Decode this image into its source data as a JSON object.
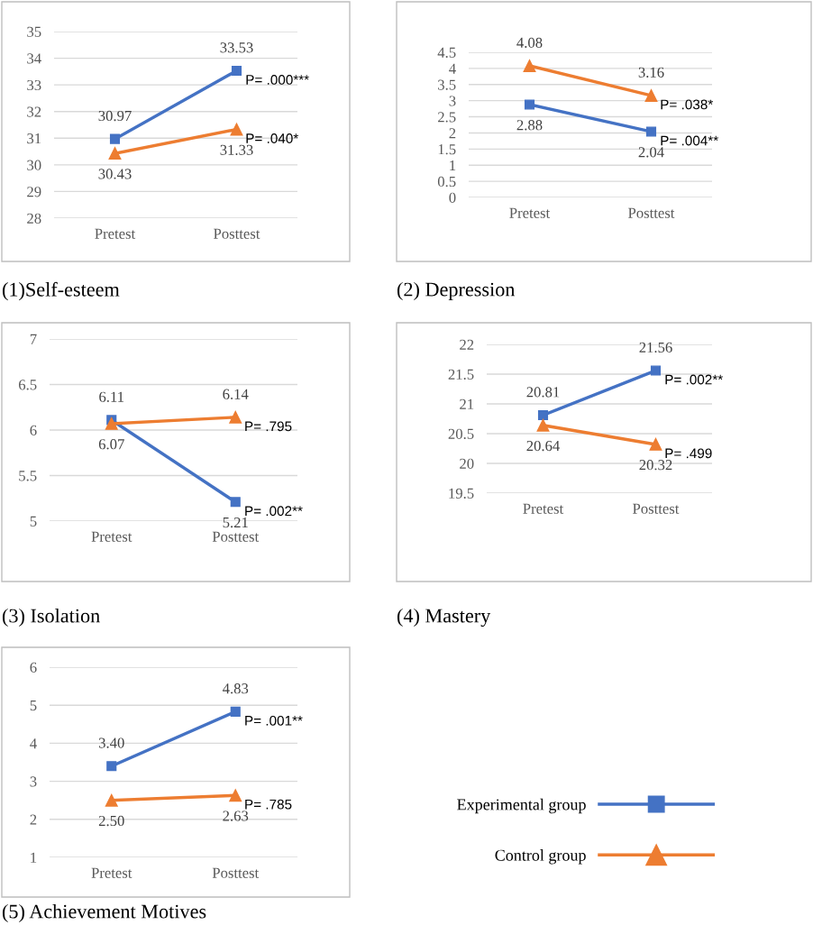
{
  "chart_data": [
    {
      "type": "line",
      "title": "(1)Self-esteem",
      "categories": [
        "Pretest",
        "Posttest"
      ],
      "ylim": [
        28,
        35
      ],
      "yticks": [
        28,
        29,
        30,
        31,
        32,
        33,
        34,
        35
      ],
      "grid": "y",
      "series": [
        {
          "color": "#4472c4",
          "marker": "square",
          "values": [
            30.97,
            33.53
          ],
          "value_labels": [
            "30.97",
            "33.53"
          ]
        },
        {
          "color": "#ed7d31",
          "marker": "triangle",
          "values": [
            30.43,
            31.33
          ],
          "value_labels": [
            "30.43",
            "31.33"
          ]
        }
      ],
      "annotations": [
        {
          "text": "P= .000***",
          "x": "Posttest",
          "y": 33.53
        },
        {
          "text": "P= .040*",
          "x": "Posttest",
          "y": 31.33
        }
      ]
    },
    {
      "type": "line",
      "title": "(2) Depression",
      "categories": [
        "Pretest",
        "Posttest"
      ],
      "ylim": [
        0,
        4.5
      ],
      "yticks": [
        0,
        0.5,
        1,
        1.5,
        2,
        2.5,
        3,
        3.5,
        4,
        4.5
      ],
      "grid": "y",
      "series": [
        {
          "color": "#4472c4",
          "marker": "square",
          "values": [
            2.88,
            2.04
          ],
          "value_labels": [
            "2.88",
            "2.04"
          ]
        },
        {
          "color": "#ed7d31",
          "marker": "triangle",
          "values": [
            4.08,
            3.16
          ],
          "value_labels": [
            "4.08",
            "3.16"
          ]
        }
      ],
      "annotations": [
        {
          "text": "P= .004**",
          "x": "Posttest",
          "y": 2.04
        },
        {
          "text": "P= .038*",
          "x": "Posttest",
          "y": 3.16
        }
      ]
    },
    {
      "type": "line",
      "title": "(3) Isolation",
      "categories": [
        "Pretest",
        "Posttest"
      ],
      "ylim": [
        5,
        7
      ],
      "yticks": [
        5,
        5.5,
        6,
        6.5,
        7
      ],
      "grid": "y",
      "series": [
        {
          "color": "#4472c4",
          "marker": "square",
          "values": [
            6.11,
            5.21
          ],
          "value_labels": [
            "6.11",
            "5.21"
          ]
        },
        {
          "color": "#ed7d31",
          "marker": "triangle",
          "values": [
            6.07,
            6.14
          ],
          "value_labels": [
            "6.07",
            "6.14"
          ]
        }
      ],
      "annotations": [
        {
          "text": "P= .002**",
          "x": "Posttest",
          "y": 5.21
        },
        {
          "text": "P= .795",
          "x": "Posttest",
          "y": 6.14
        }
      ]
    },
    {
      "type": "line",
      "title": "(4) Mastery",
      "categories": [
        "Pretest",
        "Posttest"
      ],
      "ylim": [
        19.5,
        22
      ],
      "yticks": [
        19.5,
        20,
        20.5,
        21,
        21.5,
        22
      ],
      "grid": "y",
      "series": [
        {
          "color": "#4472c4",
          "marker": "square",
          "values": [
            20.81,
            21.56
          ],
          "value_labels": [
            "20.81",
            "21.56"
          ]
        },
        {
          "color": "#ed7d31",
          "marker": "triangle",
          "values": [
            20.64,
            20.32
          ],
          "value_labels": [
            "20.64",
            "20.32"
          ]
        }
      ],
      "annotations": [
        {
          "text": "P= .002**",
          "x": "Posttest",
          "y": 21.56
        },
        {
          "text": "P= .499",
          "x": "Posttest",
          "y": 20.32
        }
      ]
    },
    {
      "type": "line",
      "title": "(5) Achievement Motives",
      "categories": [
        "Pretest",
        "Posttest"
      ],
      "ylim": [
        1,
        6
      ],
      "yticks": [
        1,
        2,
        3,
        4,
        5,
        6
      ],
      "grid": "y",
      "legend": "right",
      "series": [
        {
          "name": "Experimental group",
          "color": "#4472c4",
          "marker": "square",
          "values": [
            3.4,
            4.83
          ],
          "value_labels": [
            "3.40",
            "4.83"
          ]
        },
        {
          "name": "Control group",
          "color": "#ed7d31",
          "marker": "triangle",
          "values": [
            2.5,
            2.63
          ],
          "value_labels": [
            "2.50",
            "2.63"
          ]
        }
      ],
      "annotations": [
        {
          "text": "P= .001**",
          "x": "Posttest",
          "y": 4.83
        },
        {
          "text": "P= .785",
          "x": "Posttest",
          "y": 2.63
        }
      ]
    }
  ]
}
